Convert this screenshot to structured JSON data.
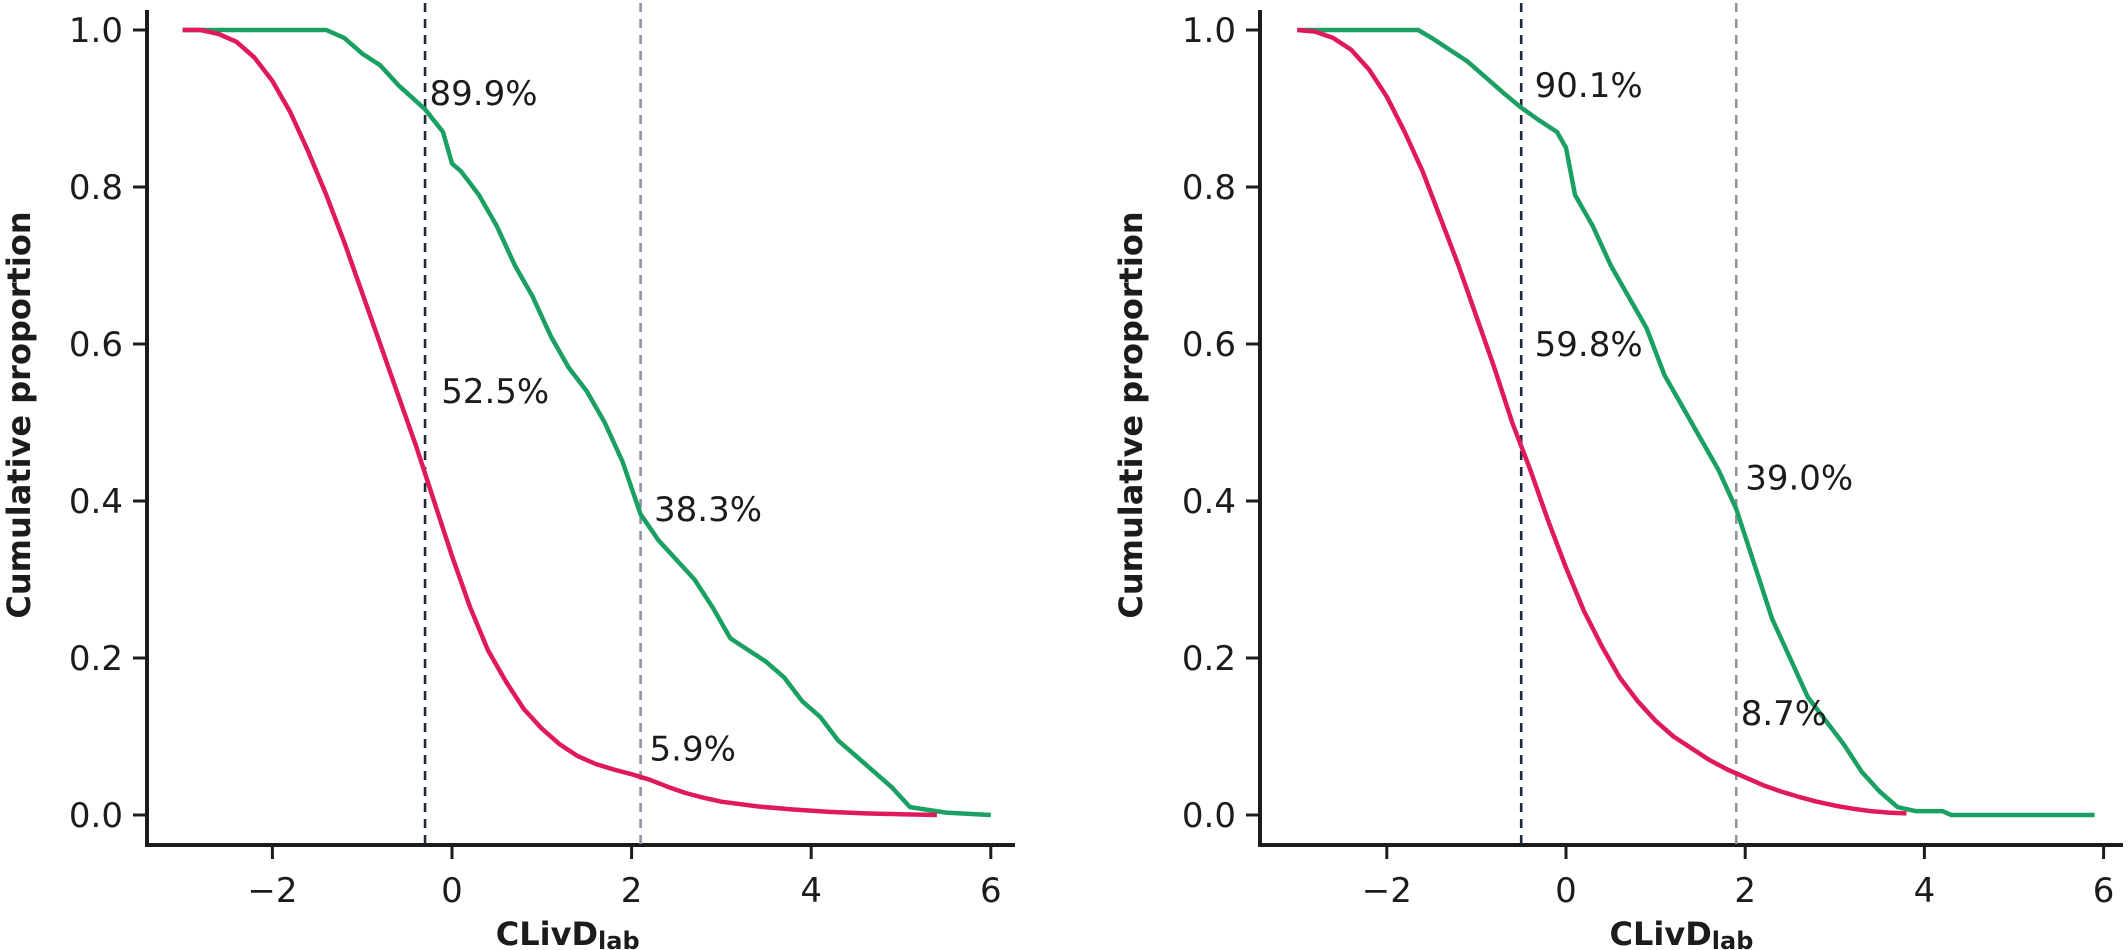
{
  "chart_data": [
    {
      "type": "line",
      "title": "",
      "xlabel": "CLivD",
      "xlabel_sub": "lab",
      "ylabel": "Cumulative proportion",
      "xlim": [
        -3.4,
        6.3
      ],
      "ylim": [
        0,
        1
      ],
      "xticks": [
        -2,
        0,
        2,
        4,
        6
      ],
      "xtick_labels": [
        "−2",
        "0",
        "2",
        "4",
        "6"
      ],
      "yticks": [
        0,
        0.2,
        0.4,
        0.6,
        0.8,
        1.0
      ],
      "ytick_labels": [
        "0.0",
        "0.2",
        "0.4",
        "0.6",
        "0.8",
        "1.0"
      ],
      "grid": false,
      "colors": {
        "green": "#1aa063",
        "red": "#e0195b",
        "dark_dash": "#1e2a3a",
        "gray_dash": "#8a96a3",
        "axis": "#1c1c1c"
      },
      "series": [
        {
          "color": "#1aa063",
          "x": [
            -3.0,
            -1.4,
            -1.2,
            -1.0,
            -0.8,
            -0.6,
            -0.3,
            -0.1,
            0.0,
            0.1,
            0.3,
            0.5,
            0.7,
            0.9,
            1.1,
            1.3,
            1.5,
            1.7,
            1.9,
            2.1,
            2.3,
            2.5,
            2.7,
            2.9,
            3.1,
            3.3,
            3.5,
            3.7,
            3.9,
            4.1,
            4.3,
            4.5,
            4.7,
            4.9,
            5.1,
            5.5,
            6.0
          ],
          "y": [
            1.0,
            1.0,
            0.99,
            0.97,
            0.955,
            0.93,
            0.899,
            0.87,
            0.83,
            0.82,
            0.79,
            0.75,
            0.7,
            0.66,
            0.61,
            0.57,
            0.54,
            0.5,
            0.45,
            0.383,
            0.35,
            0.325,
            0.3,
            0.265,
            0.225,
            0.21,
            0.195,
            0.175,
            0.145,
            0.125,
            0.095,
            0.075,
            0.055,
            0.035,
            0.01,
            0.003,
            0.0
          ]
        },
        {
          "color": "#e0195b",
          "x": [
            -3.0,
            -2.8,
            -2.6,
            -2.4,
            -2.2,
            -2.0,
            -1.8,
            -1.6,
            -1.4,
            -1.2,
            -1.0,
            -0.8,
            -0.6,
            -0.4,
            -0.2,
            0.0,
            0.2,
            0.4,
            0.6,
            0.8,
            1.0,
            1.2,
            1.4,
            1.6,
            1.8,
            2.0,
            2.2,
            2.4,
            2.6,
            2.8,
            3.0,
            3.4,
            3.8,
            4.2,
            4.6,
            5.0,
            5.4
          ],
          "y": [
            1.0,
            1.0,
            0.995,
            0.985,
            0.965,
            0.935,
            0.895,
            0.845,
            0.79,
            0.73,
            0.665,
            0.6,
            0.535,
            0.47,
            0.4,
            0.33,
            0.265,
            0.21,
            0.17,
            0.135,
            0.11,
            0.09,
            0.075,
            0.065,
            0.058,
            0.052,
            0.045,
            0.036,
            0.028,
            0.022,
            0.017,
            0.011,
            0.007,
            0.004,
            0.002,
            0.001,
            0.0
          ]
        }
      ],
      "vlines": [
        {
          "x": -0.3,
          "style": "dark"
        },
        {
          "x": 2.1,
          "style": "gray"
        }
      ],
      "annotations": [
        {
          "text": "89.9%",
          "x": -0.25,
          "y": 0.92
        },
        {
          "text": "52.5%",
          "x": -0.12,
          "y": 0.54
        },
        {
          "text": "38.3%",
          "x": 2.25,
          "y": 0.39
        },
        {
          "text": "5.9%",
          "x": 2.2,
          "y": 0.085
        }
      ]
    },
    {
      "type": "line",
      "title": "",
      "xlabel": "CLivD",
      "xlabel_sub": "lab",
      "ylabel": "Cumulative proportion",
      "xlim": [
        -3.4,
        6.3
      ],
      "ylim": [
        0,
        1
      ],
      "xticks": [
        -2,
        0,
        2,
        4,
        6
      ],
      "xtick_labels": [
        "−2",
        "0",
        "2",
        "4",
        "6"
      ],
      "yticks": [
        0,
        0.2,
        0.4,
        0.6,
        0.8,
        1.0
      ],
      "ytick_labels": [
        "0.0",
        "0.2",
        "0.4",
        "0.6",
        "0.8",
        "1.0"
      ],
      "grid": false,
      "colors": {
        "green": "#1aa063",
        "red": "#e0195b",
        "dark_dash": "#1e2a3a",
        "gray_dash": "#8a96a3",
        "axis": "#1c1c1c"
      },
      "series": [
        {
          "color": "#1aa063",
          "x": [
            -3.0,
            -1.65,
            -1.5,
            -1.3,
            -1.1,
            -0.9,
            -0.7,
            -0.5,
            -0.3,
            -0.1,
            0.0,
            0.1,
            0.3,
            0.5,
            0.7,
            0.9,
            1.1,
            1.3,
            1.5,
            1.7,
            1.9,
            2.1,
            2.3,
            2.5,
            2.7,
            2.9,
            3.1,
            3.3,
            3.5,
            3.7,
            3.9,
            4.2,
            4.3,
            4.6,
            5.9
          ],
          "y": [
            1.0,
            1.0,
            0.99,
            0.975,
            0.96,
            0.94,
            0.92,
            0.901,
            0.885,
            0.87,
            0.85,
            0.79,
            0.75,
            0.7,
            0.66,
            0.62,
            0.56,
            0.52,
            0.48,
            0.44,
            0.39,
            0.32,
            0.25,
            0.2,
            0.15,
            0.12,
            0.09,
            0.055,
            0.03,
            0.01,
            0.005,
            0.005,
            0.0,
            0.0,
            0.0
          ]
        },
        {
          "color": "#e0195b",
          "x": [
            -3.0,
            -2.8,
            -2.6,
            -2.4,
            -2.2,
            -2.0,
            -1.8,
            -1.6,
            -1.4,
            -1.2,
            -1.0,
            -0.8,
            -0.6,
            -0.4,
            -0.2,
            0.0,
            0.2,
            0.4,
            0.6,
            0.8,
            1.0,
            1.2,
            1.4,
            1.6,
            1.8,
            2.0,
            2.2,
            2.4,
            2.6,
            2.8,
            3.0,
            3.2,
            3.4,
            3.6,
            3.8
          ],
          "y": [
            1.0,
            0.998,
            0.99,
            0.975,
            0.95,
            0.915,
            0.87,
            0.82,
            0.76,
            0.7,
            0.635,
            0.57,
            0.5,
            0.44,
            0.375,
            0.315,
            0.26,
            0.215,
            0.175,
            0.145,
            0.12,
            0.1,
            0.085,
            0.07,
            0.058,
            0.048,
            0.038,
            0.03,
            0.023,
            0.017,
            0.012,
            0.008,
            0.005,
            0.003,
            0.002
          ]
        }
      ],
      "vlines": [
        {
          "x": -0.5,
          "style": "dark"
        },
        {
          "x": 1.9,
          "style": "gray"
        }
      ],
      "annotations": [
        {
          "text": "90.1%",
          "x": -0.35,
          "y": 0.93
        },
        {
          "text": "59.8%",
          "x": -0.35,
          "y": 0.6
        },
        {
          "text": "39.0%",
          "x": 2.0,
          "y": 0.43
        },
        {
          "text": "8.7%",
          "x": 1.95,
          "y": 0.13
        }
      ]
    }
  ]
}
